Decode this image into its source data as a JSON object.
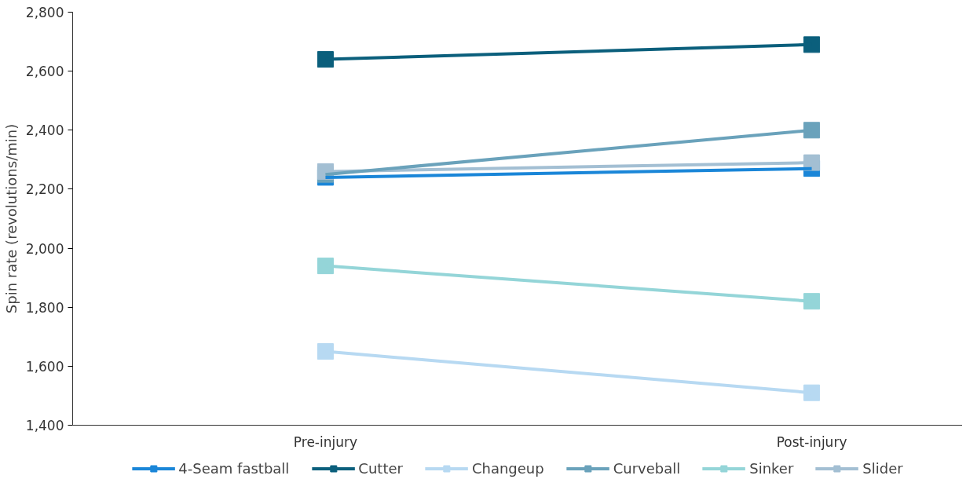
{
  "chart_data": {
    "type": "line",
    "ylabel": "Spin rate (revolutions/min)",
    "categories": [
      "Pre-injury",
      "Post-injury"
    ],
    "ylim": [
      1400,
      2800
    ],
    "yticks": [
      {
        "value": 1400,
        "label": "1,400"
      },
      {
        "value": 1600,
        "label": "1,600"
      },
      {
        "value": 1800,
        "label": "1,800"
      },
      {
        "value": 2000,
        "label": "2,000"
      },
      {
        "value": 2200,
        "label": "2,200"
      },
      {
        "value": 2400,
        "label": "2,400"
      },
      {
        "value": 2600,
        "label": "2,600"
      },
      {
        "value": 2800,
        "label": "2,800"
      }
    ],
    "grid": false,
    "legend": "bottom",
    "marker": "square",
    "line_style": "solid",
    "series": [
      {
        "name": "4-Seam fastball",
        "color": "#1a86d8",
        "values": [
          2240,
          2270
        ]
      },
      {
        "name": "Cutter",
        "color": "#0b5f7c",
        "values": [
          2640,
          2690
        ]
      },
      {
        "name": "Changeup",
        "color": "#b7d9f2",
        "values": [
          1650,
          1510
        ]
      },
      {
        "name": "Curveball",
        "color": "#6aa2bb",
        "values": [
          2250,
          2400
        ]
      },
      {
        "name": "Sinker",
        "color": "#94d5d8",
        "values": [
          1940,
          1820
        ]
      },
      {
        "name": "Slider",
        "color": "#a3bfd3",
        "values": [
          2260,
          2290
        ]
      }
    ]
  }
}
